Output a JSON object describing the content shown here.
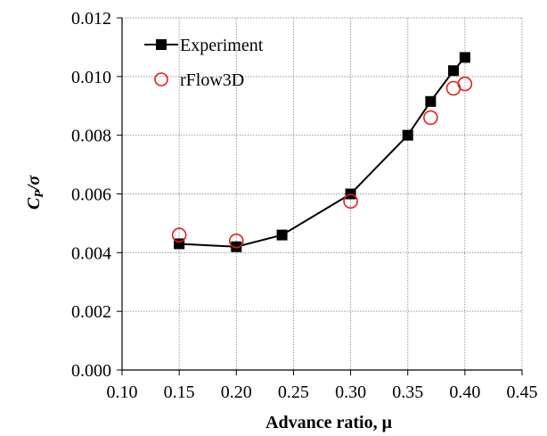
{
  "chart_data": {
    "type": "line",
    "xlabel": "Advance ratio, μ",
    "ylabel_main": "C",
    "ylabel_sub": "P",
    "ylabel_tail": "/σ",
    "xlim": [
      0.1,
      0.45
    ],
    "ylim": [
      0.0,
      0.012
    ],
    "x_ticks": [
      "0.10",
      "0.15",
      "0.20",
      "0.25",
      "0.30",
      "0.35",
      "0.40",
      "0.45"
    ],
    "x_tick_values": [
      0.1,
      0.15,
      0.2,
      0.25,
      0.3,
      0.35,
      0.4,
      0.45
    ],
    "y_ticks": [
      "0.000",
      "0.002",
      "0.004",
      "0.006",
      "0.008",
      "0.010",
      "0.012"
    ],
    "y_tick_values": [
      0.0,
      0.002,
      0.004,
      0.006,
      0.008,
      0.01,
      0.012
    ],
    "grid": true,
    "legend_position": "top-left",
    "series": [
      {
        "name": "Experiment",
        "marker": "filled-square",
        "line": true,
        "color": "#000000",
        "x": [
          0.15,
          0.2,
          0.24,
          0.3,
          0.35,
          0.37,
          0.39,
          0.4
        ],
        "y": [
          0.0043,
          0.0042,
          0.0046,
          0.006,
          0.008,
          0.00915,
          0.0102,
          0.01065
        ]
      },
      {
        "name": "rFlow3D",
        "marker": "open-circle",
        "line": false,
        "color": "#e0201c",
        "x": [
          0.15,
          0.2,
          0.3,
          0.37,
          0.39,
          0.4
        ],
        "y": [
          0.0046,
          0.0044,
          0.00575,
          0.0086,
          0.0096,
          0.00975
        ]
      }
    ]
  }
}
